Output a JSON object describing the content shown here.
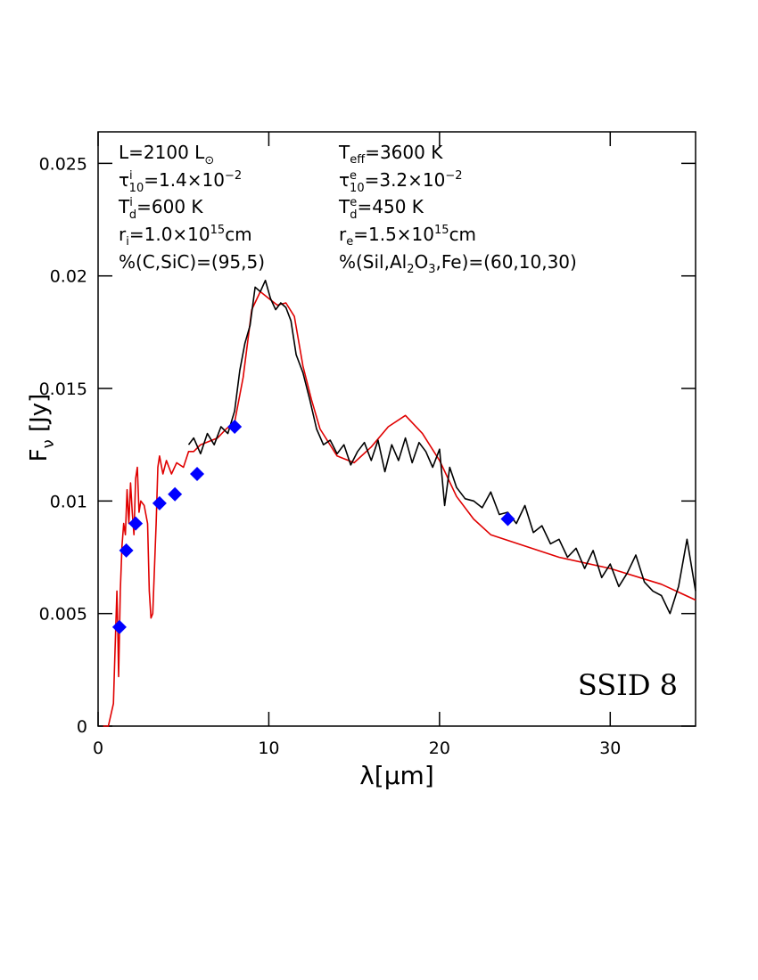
{
  "chart_data": {
    "type": "line",
    "xlabel": [
      "λ[μm]"
    ],
    "ylabel": [
      "F",
      "ν",
      " [Jy]"
    ],
    "xlim": [
      0,
      35
    ],
    "ylim": [
      0,
      0.0264
    ],
    "xticks": [
      0,
      10,
      20,
      30
    ],
    "yticks": [
      0,
      0.005,
      0.01,
      0.015,
      0.02,
      0.025
    ],
    "label": "SSID 8",
    "annotations": [
      [
        "L=2100 L",
        "⊙"
      ],
      [
        "T",
        "eff",
        "=3600 K"
      ],
      [
        "τ",
        "i",
        "10",
        "=1.4×10",
        "−2"
      ],
      [
        "τ",
        "e",
        "10",
        "=3.2×10",
        "−2"
      ],
      [
        "T",
        "i",
        "d",
        "=600 K"
      ],
      [
        "T",
        "e",
        "d",
        "=450 K"
      ],
      [
        "r",
        "i",
        "=1.0×10",
        "15",
        "cm"
      ],
      [
        "r",
        "e",
        "=1.5×10",
        "15",
        "cm"
      ],
      [
        "%(C,SiC)=(95,5)"
      ],
      [
        "%(Sil,Al",
        "2",
        "O",
        "3",
        ",Fe)=(60,10,30)"
      ]
    ],
    "series": [
      {
        "color": "#000000",
        "x": [
          5.3,
          5.6,
          6.0,
          6.4,
          6.8,
          7.2,
          7.6,
          8.0,
          8.3,
          8.6,
          8.9,
          9.2,
          9.5,
          9.8,
          10.1,
          10.4,
          10.7,
          11.0,
          11.3,
          11.6,
          12.0,
          12.4,
          12.8,
          13.2,
          13.6,
          14.0,
          14.4,
          14.8,
          15.2,
          15.6,
          16.0,
          16.4,
          16.8,
          17.2,
          17.6,
          18.0,
          18.4,
          18.8,
          19.2,
          19.6,
          20.0,
          20.3,
          20.6,
          21.0,
          21.5,
          22.0,
          22.5,
          23.0,
          23.5,
          24.0,
          24.5,
          25.0,
          25.5,
          26.0,
          26.5,
          27.0,
          27.5,
          28.0,
          28.5,
          29.0,
          29.5,
          30.0,
          30.5,
          31.0,
          31.5,
          32.0,
          32.5,
          33.0,
          33.5,
          34.0,
          34.5,
          35.0
        ],
        "values": [
          0.0125,
          0.0128,
          0.0121,
          0.013,
          0.0125,
          0.0133,
          0.013,
          0.014,
          0.0158,
          0.017,
          0.0178,
          0.0195,
          0.0193,
          0.0198,
          0.019,
          0.0185,
          0.0188,
          0.0186,
          0.018,
          0.0165,
          0.0157,
          0.0145,
          0.0132,
          0.0125,
          0.0127,
          0.0121,
          0.0125,
          0.0116,
          0.0122,
          0.0126,
          0.0118,
          0.0127,
          0.0113,
          0.0125,
          0.0118,
          0.0128,
          0.0117,
          0.0126,
          0.0122,
          0.0115,
          0.0123,
          0.0098,
          0.0115,
          0.0106,
          0.0101,
          0.01,
          0.0097,
          0.0104,
          0.0094,
          0.0095,
          0.009,
          0.0098,
          0.0086,
          0.0089,
          0.0081,
          0.0083,
          0.0075,
          0.0079,
          0.007,
          0.0078,
          0.0066,
          0.0072,
          0.0062,
          0.0068,
          0.0076,
          0.0064,
          0.006,
          0.0058,
          0.005,
          0.0062,
          0.0083,
          0.006
        ]
      },
      {
        "color": "#e00000",
        "x": [
          0.3,
          0.6,
          0.9,
          1.0,
          1.1,
          1.15,
          1.2,
          1.3,
          1.4,
          1.5,
          1.6,
          1.7,
          1.8,
          1.9,
          2.0,
          2.1,
          2.2,
          2.3,
          2.4,
          2.5,
          2.7,
          2.9,
          3.0,
          3.1,
          3.2,
          3.4,
          3.5,
          3.6,
          3.8,
          4.0,
          4.3,
          4.6,
          5.0,
          5.3,
          5.6,
          6.0,
          7.0,
          7.5,
          8.0,
          8.5,
          9.0,
          9.5,
          10.0,
          10.5,
          11.0,
          11.5,
          12.0,
          12.5,
          13.0,
          14.0,
          15.0,
          16.0,
          17.0,
          18.0,
          19.0,
          20.0,
          21.0,
          22.0,
          23.0,
          25.0,
          27.0,
          30.0,
          33.0,
          35.0
        ],
        "values": [
          0,
          0,
          0.001,
          0.0035,
          0.006,
          0.0045,
          0.0022,
          0.006,
          0.008,
          0.009,
          0.0085,
          0.0105,
          0.009,
          0.0108,
          0.0095,
          0.0085,
          0.011,
          0.0115,
          0.0095,
          0.01,
          0.0098,
          0.009,
          0.006,
          0.0048,
          0.005,
          0.009,
          0.0115,
          0.012,
          0.0112,
          0.0118,
          0.0112,
          0.0117,
          0.0115,
          0.0122,
          0.0122,
          0.0125,
          0.0128,
          0.0132,
          0.0135,
          0.0155,
          0.0185,
          0.0193,
          0.019,
          0.0187,
          0.0188,
          0.0182,
          0.016,
          0.0145,
          0.0132,
          0.012,
          0.0117,
          0.0124,
          0.0133,
          0.0138,
          0.013,
          0.0118,
          0.0102,
          0.0092,
          0.0085,
          0.008,
          0.0075,
          0.007,
          0.0063,
          0.0056
        ]
      }
    ],
    "points": {
      "color": "#0000ff",
      "x": [
        1.25,
        1.65,
        2.2,
        3.6,
        4.5,
        5.8,
        8.0,
        24.0
      ],
      "values": [
        0.0044,
        0.0078,
        0.009,
        0.0099,
        0.0103,
        0.0112,
        0.0133,
        0.0092
      ]
    }
  }
}
